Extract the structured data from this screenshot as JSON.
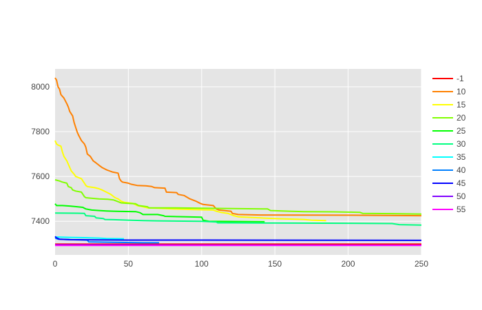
{
  "chart_data": {
    "type": "line",
    "title": "",
    "xlabel": "",
    "ylabel": "",
    "xlim": [
      0,
      250
    ],
    "ylim": [
      7250,
      8080
    ],
    "xticks": [
      0,
      50,
      100,
      150,
      200,
      250
    ],
    "yticks": [
      7400,
      7600,
      7800,
      8000
    ],
    "grid": true,
    "plot_background": "#e5e5e5",
    "legend_position": "right",
    "series": [
      {
        "name": "-1",
        "color": "#ff0000",
        "points": [
          [
            0,
            7298
          ],
          [
            250,
            7298
          ]
        ]
      },
      {
        "name": "10",
        "color": "#ff8000",
        "points": [
          [
            0,
            8040
          ],
          [
            1,
            8030
          ],
          [
            2,
            8000
          ],
          [
            3,
            7990
          ],
          [
            4,
            7965
          ],
          [
            6,
            7950
          ],
          [
            8,
            7925
          ],
          [
            9,
            7910
          ],
          [
            10,
            7890
          ],
          [
            12,
            7870
          ],
          [
            13,
            7840
          ],
          [
            15,
            7800
          ],
          [
            16,
            7785
          ],
          [
            18,
            7760
          ],
          [
            20,
            7745
          ],
          [
            21,
            7730
          ],
          [
            22,
            7700
          ],
          [
            24,
            7690
          ],
          [
            26,
            7670
          ],
          [
            28,
            7660
          ],
          [
            30,
            7650
          ],
          [
            32,
            7640
          ],
          [
            35,
            7630
          ],
          [
            37,
            7625
          ],
          [
            39,
            7620
          ],
          [
            43,
            7615
          ],
          [
            44,
            7590
          ],
          [
            45,
            7580
          ],
          [
            46,
            7575
          ],
          [
            50,
            7570
          ],
          [
            52,
            7565
          ],
          [
            56,
            7560
          ],
          [
            62,
            7558
          ],
          [
            66,
            7555
          ],
          [
            68,
            7550
          ],
          [
            75,
            7548
          ],
          [
            76,
            7530
          ],
          [
            83,
            7528
          ],
          [
            84,
            7520
          ],
          [
            88,
            7515
          ],
          [
            92,
            7500
          ],
          [
            96,
            7490
          ],
          [
            99,
            7480
          ],
          [
            101,
            7475
          ],
          [
            108,
            7470
          ],
          [
            110,
            7455
          ],
          [
            112,
            7450
          ],
          [
            120,
            7445
          ],
          [
            121,
            7435
          ],
          [
            125,
            7430
          ],
          [
            140,
            7428
          ],
          [
            200,
            7427
          ],
          [
            250,
            7425
          ]
        ]
      },
      {
        "name": "15",
        "color": "#ffff00",
        "points": [
          [
            0,
            7760
          ],
          [
            1,
            7745
          ],
          [
            2,
            7740
          ],
          [
            4,
            7735
          ],
          [
            5,
            7710
          ],
          [
            6,
            7690
          ],
          [
            8,
            7670
          ],
          [
            10,
            7640
          ],
          [
            11,
            7625
          ],
          [
            13,
            7610
          ],
          [
            14,
            7600
          ],
          [
            18,
            7590
          ],
          [
            19,
            7580
          ],
          [
            20,
            7570
          ],
          [
            21,
            7560
          ],
          [
            22,
            7555
          ],
          [
            27,
            7550
          ],
          [
            30,
            7545
          ],
          [
            32,
            7540
          ],
          [
            35,
            7530
          ],
          [
            38,
            7520
          ],
          [
            41,
            7505
          ],
          [
            43,
            7500
          ],
          [
            45,
            7490
          ],
          [
            47,
            7485
          ],
          [
            53,
            7480
          ],
          [
            56,
            7470
          ],
          [
            60,
            7465
          ],
          [
            63,
            7460
          ],
          [
            70,
            7458
          ],
          [
            80,
            7455
          ],
          [
            95,
            7452
          ],
          [
            108,
            7450
          ],
          [
            110,
            7445
          ],
          [
            113,
            7440
          ],
          [
            118,
            7435
          ],
          [
            122,
            7425
          ],
          [
            125,
            7420
          ],
          [
            130,
            7418
          ],
          [
            140,
            7415
          ],
          [
            150,
            7412
          ],
          [
            170,
            7408
          ],
          [
            175,
            7405
          ],
          [
            185,
            7403
          ]
        ]
      },
      {
        "name": "20",
        "color": "#80ff00",
        "points": [
          [
            0,
            7585
          ],
          [
            3,
            7580
          ],
          [
            5,
            7575
          ],
          [
            8,
            7570
          ],
          [
            9,
            7555
          ],
          [
            11,
            7550
          ],
          [
            12,
            7540
          ],
          [
            14,
            7535
          ],
          [
            18,
            7530
          ],
          [
            20,
            7510
          ],
          [
            21,
            7505
          ],
          [
            30,
            7500
          ],
          [
            36,
            7498
          ],
          [
            40,
            7495
          ],
          [
            42,
            7490
          ],
          [
            45,
            7482
          ],
          [
            50,
            7480
          ],
          [
            55,
            7478
          ],
          [
            57,
            7470
          ],
          [
            63,
            7465
          ],
          [
            64,
            7460
          ],
          [
            80,
            7460
          ],
          [
            100,
            7458
          ],
          [
            145,
            7455
          ],
          [
            147,
            7448
          ],
          [
            160,
            7445
          ],
          [
            170,
            7443
          ],
          [
            190,
            7442
          ],
          [
            208,
            7440
          ],
          [
            210,
            7435
          ],
          [
            230,
            7434
          ],
          [
            250,
            7432
          ]
        ]
      },
      {
        "name": "25",
        "color": "#00ff00",
        "points": [
          [
            0,
            7478
          ],
          [
            1,
            7470
          ],
          [
            5,
            7470
          ],
          [
            10,
            7468
          ],
          [
            15,
            7465
          ],
          [
            19,
            7462
          ],
          [
            20,
            7458
          ],
          [
            21,
            7455
          ],
          [
            25,
            7450
          ],
          [
            30,
            7448
          ],
          [
            35,
            7446
          ],
          [
            40,
            7445
          ],
          [
            45,
            7444
          ],
          [
            55,
            7443
          ],
          [
            57,
            7440
          ],
          [
            58,
            7438
          ],
          [
            60,
            7430
          ],
          [
            70,
            7430
          ],
          [
            74,
            7425
          ],
          [
            75,
            7422
          ],
          [
            90,
            7420
          ],
          [
            100,
            7418
          ],
          [
            101,
            7405
          ],
          [
            105,
            7400
          ],
          [
            143,
            7398
          ]
        ]
      },
      {
        "name": "30",
        "color": "#00ff80",
        "points": [
          [
            0,
            7437
          ],
          [
            15,
            7436
          ],
          [
            20,
            7435
          ],
          [
            21,
            7425
          ],
          [
            27,
            7422
          ],
          [
            28,
            7415
          ],
          [
            33,
            7412
          ],
          [
            34,
            7408
          ],
          [
            40,
            7407
          ],
          [
            50,
            7405
          ],
          [
            60,
            7403
          ],
          [
            70,
            7402
          ],
          [
            100,
            7400
          ],
          [
            110,
            7397
          ],
          [
            111,
            7393
          ],
          [
            120,
            7393
          ],
          [
            150,
            7392
          ],
          [
            200,
            7391
          ],
          [
            230,
            7390
          ],
          [
            235,
            7385
          ],
          [
            250,
            7383
          ]
        ]
      },
      {
        "name": "35",
        "color": "#00ffff",
        "points": [
          [
            0,
            7330
          ],
          [
            10,
            7328
          ],
          [
            20,
            7327
          ],
          [
            30,
            7325
          ],
          [
            35,
            7323
          ],
          [
            47,
            7322
          ]
        ]
      },
      {
        "name": "40",
        "color": "#0080ff",
        "points": [
          [
            0,
            7325
          ],
          [
            2,
            7320
          ],
          [
            10,
            7318
          ],
          [
            22,
            7316
          ],
          [
            23,
            7308
          ],
          [
            40,
            7306
          ],
          [
            60,
            7304
          ],
          [
            71,
            7304
          ]
        ]
      },
      {
        "name": "45",
        "color": "#0000ff",
        "points": [
          [
            0,
            7332
          ],
          [
            1,
            7326
          ],
          [
            3,
            7320
          ],
          [
            10,
            7318
          ],
          [
            50,
            7316
          ],
          [
            100,
            7316
          ],
          [
            250,
            7315
          ]
        ]
      },
      {
        "name": "50",
        "color": "#8000ff",
        "points": [
          [
            0,
            7295
          ],
          [
            250,
            7293
          ]
        ]
      },
      {
        "name": "55",
        "color": "#ff00ff",
        "points": [
          [
            0,
            7292
          ],
          [
            250,
            7292
          ]
        ]
      }
    ]
  }
}
